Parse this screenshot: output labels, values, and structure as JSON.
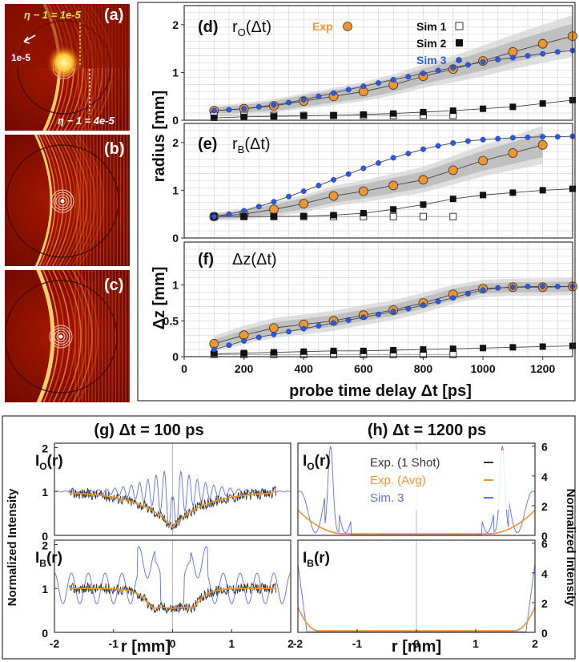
{
  "chart_data": [
    {
      "id": "a",
      "type": "image",
      "panel_label": "(a)",
      "annotations": [
        "η − 1 = 1e-5",
        "1e-5",
        "η − 1 = 4e-5"
      ]
    },
    {
      "id": "b",
      "type": "image",
      "panel_label": "(b)"
    },
    {
      "id": "c",
      "type": "image",
      "panel_label": "(c)"
    },
    {
      "id": "d",
      "type": "line",
      "panel_label": "(d)",
      "title": "r_O(Δt)",
      "title_main": "r",
      "title_sub": "O",
      "title_arg": "(Δt)",
      "ylabel": "radius [mm]",
      "xlim": [
        0,
        1300
      ],
      "ylim": [
        0,
        2.4
      ],
      "yticks": [
        "0",
        "1",
        "2"
      ],
      "legend": [
        "Exp",
        "Sim 1",
        "Sim 2",
        "Sim 3"
      ],
      "series": [
        {
          "name": "Exp",
          "color": "#f0962e",
          "x": [
            100,
            200,
            300,
            400,
            500,
            600,
            700,
            800,
            900,
            1000,
            1100,
            1200,
            1300
          ],
          "y": [
            0.2,
            0.24,
            0.3,
            0.4,
            0.5,
            0.6,
            0.74,
            0.92,
            1.07,
            1.24,
            1.43,
            1.6,
            1.76
          ],
          "band_inner": [
            0.06,
            0.08,
            0.1,
            0.12,
            0.13,
            0.14,
            0.15,
            0.16,
            0.17,
            0.2,
            0.22,
            0.24,
            0.26
          ],
          "band_outer": [
            0.1,
            0.12,
            0.14,
            0.16,
            0.18,
            0.2,
            0.22,
            0.24,
            0.28,
            0.32,
            0.36,
            0.4,
            0.44
          ]
        },
        {
          "name": "Sim 1",
          "color": "#ffffff",
          "x": [
            100,
            200,
            300,
            400,
            500,
            600,
            700,
            800,
            900
          ],
          "y": [
            0.1,
            0.1,
            0.1,
            0.1,
            0.1,
            0.1,
            0.1,
            0.1,
            0.1
          ]
        },
        {
          "name": "Sim 2",
          "color": "#111111",
          "x": [
            100,
            200,
            300,
            400,
            500,
            600,
            700,
            800,
            900,
            1000,
            1100,
            1200,
            1300
          ],
          "y": [
            0.05,
            0.07,
            0.08,
            0.09,
            0.1,
            0.12,
            0.14,
            0.17,
            0.2,
            0.24,
            0.28,
            0.35,
            0.42
          ]
        },
        {
          "name": "Sim 3",
          "color": "#2b58e0",
          "x": [
            100,
            150,
            200,
            250,
            300,
            350,
            400,
            450,
            500,
            550,
            600,
            650,
            700,
            750,
            800,
            850,
            900,
            950,
            1000,
            1050,
            1100,
            1150,
            1200,
            1250,
            1300
          ],
          "y": [
            0.2,
            0.22,
            0.24,
            0.28,
            0.32,
            0.37,
            0.43,
            0.5,
            0.57,
            0.64,
            0.71,
            0.78,
            0.85,
            0.91,
            0.98,
            1.04,
            1.1,
            1.16,
            1.22,
            1.27,
            1.31,
            1.35,
            1.39,
            1.43,
            1.46
          ]
        }
      ]
    },
    {
      "id": "e",
      "type": "line",
      "panel_label": "(e)",
      "title": "r_B(Δt)",
      "title_main": "r",
      "title_sub": "B",
      "title_arg": "(Δt)",
      "xlim": [
        0,
        1300
      ],
      "ylim": [
        0,
        2.4
      ],
      "yticks": [
        "0",
        "1",
        "2"
      ],
      "series": [
        {
          "name": "Exp",
          "color": "#f0962e",
          "x": [
            100,
            200,
            300,
            400,
            500,
            600,
            700,
            800,
            900,
            1000,
            1100,
            1200
          ],
          "y": [
            0.45,
            0.5,
            0.6,
            0.72,
            0.88,
            0.98,
            1.1,
            1.22,
            1.42,
            1.62,
            1.78,
            1.95
          ],
          "band_inner": [
            0.05,
            0.08,
            0.1,
            0.12,
            0.14,
            0.15,
            0.16,
            0.17,
            0.19,
            0.21,
            0.23,
            0.25
          ],
          "band_outer": [
            0.08,
            0.12,
            0.15,
            0.18,
            0.21,
            0.23,
            0.25,
            0.27,
            0.3,
            0.33,
            0.36,
            0.4
          ]
        },
        {
          "name": "Sim 1",
          "color": "#ffffff",
          "x": [
            100,
            200,
            300,
            400,
            500,
            600,
            700,
            800,
            900
          ],
          "y": [
            0.45,
            0.45,
            0.45,
            0.45,
            0.45,
            0.45,
            0.45,
            0.45,
            0.45
          ]
        },
        {
          "name": "Sim 2",
          "color": "#111111",
          "x": [
            100,
            200,
            300,
            400,
            500,
            600,
            700,
            800,
            900,
            1000,
            1100,
            1200,
            1300
          ],
          "y": [
            0.45,
            0.45,
            0.45,
            0.46,
            0.48,
            0.52,
            0.6,
            0.7,
            0.82,
            0.9,
            0.95,
            1.0,
            1.03
          ]
        },
        {
          "name": "Sim 3",
          "color": "#2b58e0",
          "x": [
            100,
            150,
            200,
            250,
            300,
            350,
            400,
            450,
            500,
            550,
            600,
            650,
            700,
            750,
            800,
            850,
            900,
            950,
            1000,
            1050,
            1100,
            1150,
            1200,
            1250,
            1300
          ],
          "y": [
            0.45,
            0.5,
            0.57,
            0.66,
            0.76,
            0.87,
            0.98,
            1.1,
            1.22,
            1.34,
            1.46,
            1.57,
            1.68,
            1.77,
            1.86,
            1.93,
            1.99,
            2.03,
            2.06,
            2.08,
            2.1,
            2.11,
            2.12,
            2.12,
            2.13
          ]
        }
      ]
    },
    {
      "id": "f",
      "type": "line",
      "panel_label": "(f)",
      "title": "Δz(Δt)",
      "ylabel": "Δz [mm]",
      "xlabel": "probe time delay Δt [ps]",
      "xlim": [
        0,
        1300
      ],
      "xticks": [
        "0",
        "200",
        "400",
        "600",
        "800",
        "1000",
        "1200"
      ],
      "ylim": [
        0,
        1.6
      ],
      "yticks": [
        "0",
        "0.5",
        "1"
      ],
      "series": [
        {
          "name": "Exp",
          "color": "#f0962e",
          "x": [
            100,
            200,
            300,
            400,
            500,
            600,
            700,
            800,
            900,
            1000,
            1100,
            1200,
            1300
          ],
          "y": [
            0.18,
            0.3,
            0.4,
            0.45,
            0.5,
            0.58,
            0.65,
            0.75,
            0.87,
            0.95,
            0.97,
            0.97,
            0.98
          ],
          "band_inner": [
            0.06,
            0.07,
            0.08,
            0.08,
            0.08,
            0.08,
            0.08,
            0.08,
            0.08,
            0.07,
            0.07,
            0.07,
            0.07
          ],
          "band_outer": [
            0.11,
            0.13,
            0.14,
            0.14,
            0.14,
            0.14,
            0.14,
            0.14,
            0.13,
            0.12,
            0.12,
            0.12,
            0.12
          ]
        },
        {
          "name": "Sim 1",
          "color": "#ffffff",
          "x": [
            100,
            200,
            300,
            400,
            500,
            600,
            700,
            800,
            900
          ],
          "y": [
            0.03,
            0.03,
            0.03,
            0.03,
            0.03,
            0.03,
            0.03,
            0.03,
            0.03
          ]
        },
        {
          "name": "Sim 2",
          "color": "#111111",
          "x": [
            100,
            200,
            300,
            400,
            500,
            600,
            700,
            800,
            900,
            1000,
            1100,
            1200,
            1300
          ],
          "y": [
            0.04,
            0.05,
            0.06,
            0.07,
            0.08,
            0.08,
            0.09,
            0.1,
            0.11,
            0.12,
            0.13,
            0.14,
            0.15
          ]
        },
        {
          "name": "Sim 3",
          "color": "#2b58e0",
          "x": [
            100,
            150,
            200,
            250,
            300,
            350,
            400,
            450,
            500,
            550,
            600,
            650,
            700,
            750,
            800,
            850,
            900,
            950,
            1000,
            1050,
            1100,
            1150,
            1200,
            1250,
            1300
          ],
          "y": [
            0.1,
            0.16,
            0.22,
            0.27,
            0.31,
            0.35,
            0.39,
            0.43,
            0.47,
            0.51,
            0.55,
            0.59,
            0.63,
            0.67,
            0.72,
            0.77,
            0.82,
            0.88,
            0.93,
            0.96,
            0.97,
            0.98,
            0.98,
            0.98,
            0.98
          ]
        }
      ]
    },
    {
      "id": "g",
      "type": "line",
      "panel_label": "(g)",
      "title": "(g)  Δt = 100 ps",
      "ylabel": "Normalized Intensity",
      "xlabel": "r [mm]",
      "xlim": [
        -2,
        2
      ],
      "xticks": [
        "-2",
        "-1",
        "0",
        "1",
        "2"
      ],
      "subplots": [
        {
          "label": "I_O(r)",
          "label_main": "I",
          "label_sub": "O",
          "label_arg": "(r)",
          "ylim": [
            0,
            2.1
          ],
          "yticks": [
            "0",
            "1",
            "2"
          ]
        },
        {
          "label": "I_B(r)",
          "label_main": "I",
          "label_sub": "B",
          "label_arg": "(r)",
          "ylim": [
            0,
            2.1
          ],
          "yticks": [
            "0",
            "1",
            "2"
          ]
        }
      ]
    },
    {
      "id": "h",
      "type": "line",
      "panel_label": "(h)",
      "title": "(h)  Δt = 1200 ps",
      "ylabel": "Normalized Intensity",
      "xlabel": "r [mm]",
      "xlim": [
        -2,
        2
      ],
      "xticks": [
        "-2",
        "-1",
        "0",
        "1",
        "2"
      ],
      "legend": [
        "Exp. (1 Shot)",
        "Exp. (Avg)",
        "Sim. 3"
      ],
      "legend_colors": [
        "#333333",
        "#f0962e",
        "#5a6ee8"
      ],
      "subplots": [
        {
          "label": "I_O(r)",
          "label_main": "I",
          "label_sub": "O",
          "label_arg": "(r)",
          "ylim": [
            0,
            6.2
          ],
          "yticks": [
            "0",
            "2",
            "4",
            "6"
          ]
        },
        {
          "label": "I_B(r)",
          "label_main": "I",
          "label_sub": "B",
          "label_arg": "(r)",
          "ylim": [
            0,
            6.2
          ],
          "yticks": [
            "0",
            "2",
            "4",
            "6"
          ]
        }
      ]
    }
  ]
}
